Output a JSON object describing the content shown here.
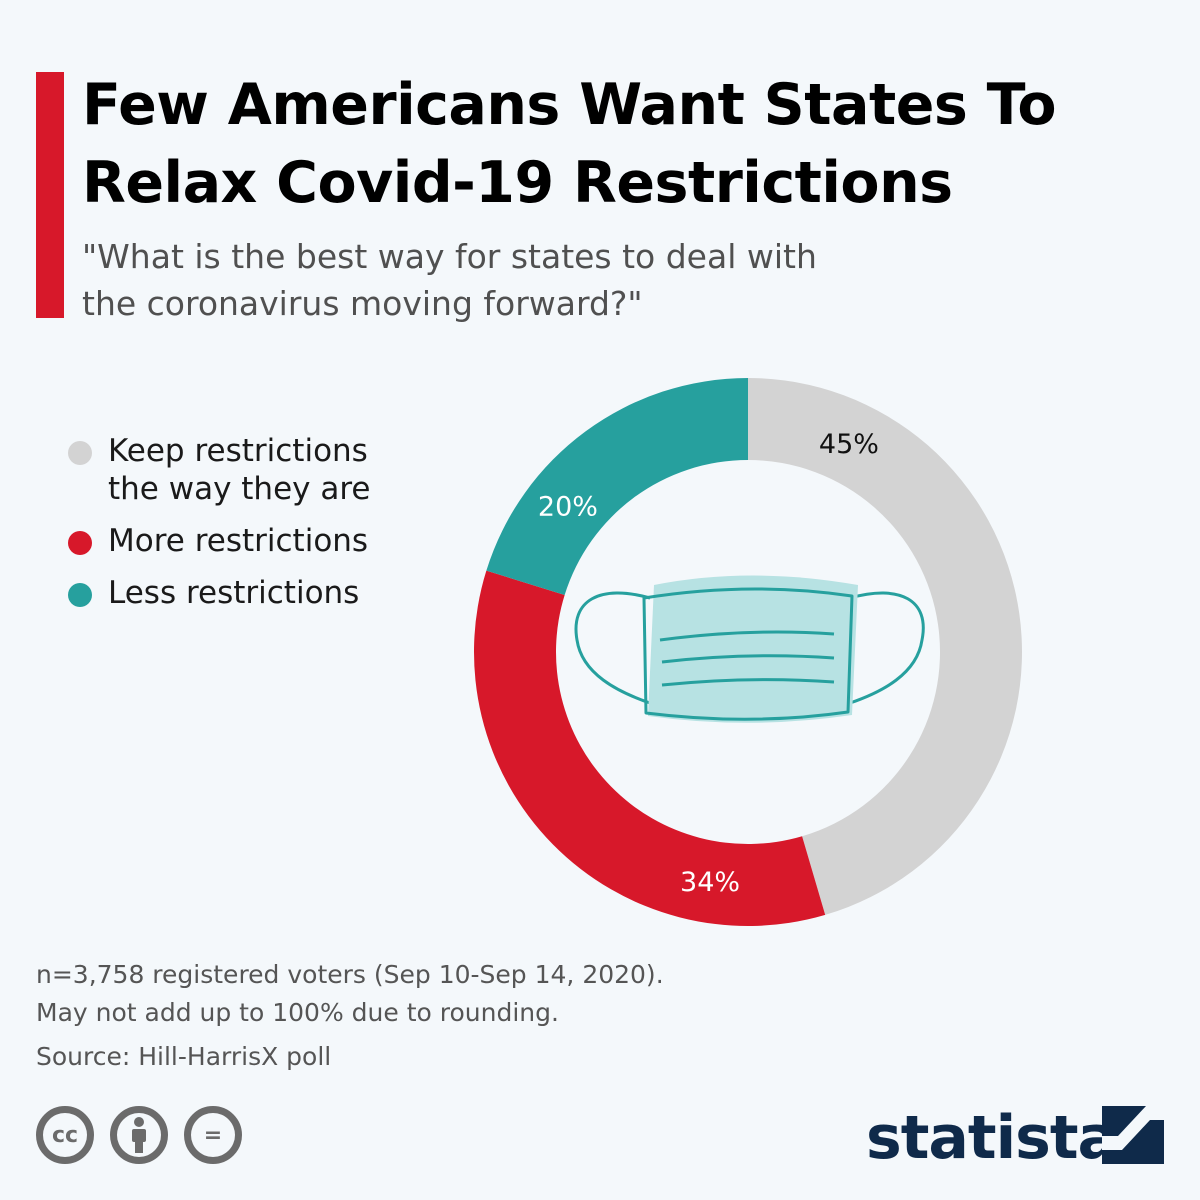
{
  "header": {
    "title": "Few Americans Want States To Relax Covid-19 Restrictions",
    "subtitle": "\"What is the best way for states to deal with the coronavirus moving forward?\""
  },
  "chart_data": {
    "type": "pie",
    "title": "Few Americans Want States To Relax Covid-19 Restrictions",
    "subtitle": "\"What is the best way for states to deal with the coronavirus moving forward?\"",
    "categories": [
      "Keep restrictions the way they are",
      "More restrictions",
      "Less restrictions"
    ],
    "values": [
      45,
      34,
      20
    ],
    "labels": [
      "45%",
      "34%",
      "20%"
    ],
    "colors": [
      "#d3d3d3",
      "#d7182a",
      "#26a09e"
    ],
    "label_colors": [
      "#111111",
      "#ffffff",
      "#ffffff"
    ],
    "donut": true,
    "legend_position": "left",
    "center_icon": "face-mask-icon"
  },
  "legend": {
    "items": [
      {
        "label_line1": "Keep restrictions",
        "label_line2": "the way they are",
        "color": "#d3d3d3"
      },
      {
        "label": "More restrictions",
        "color": "#d7182a"
      },
      {
        "label": "Less restrictions",
        "color": "#26a09e"
      }
    ]
  },
  "footer": {
    "note_line1": "n=3,758 registered voters (Sep 10-Sep 14, 2020).",
    "note_line2": "May not add up to 100% due to rounding.",
    "source": "Source: Hill-HarrisX poll",
    "cc_label": "cc",
    "eq_label": "=",
    "icons": [
      "creative-commons-icon",
      "attribution-person-icon",
      "no-derivatives-icon"
    ],
    "brand": "statista",
    "brand_color": "#0f2a4a"
  }
}
